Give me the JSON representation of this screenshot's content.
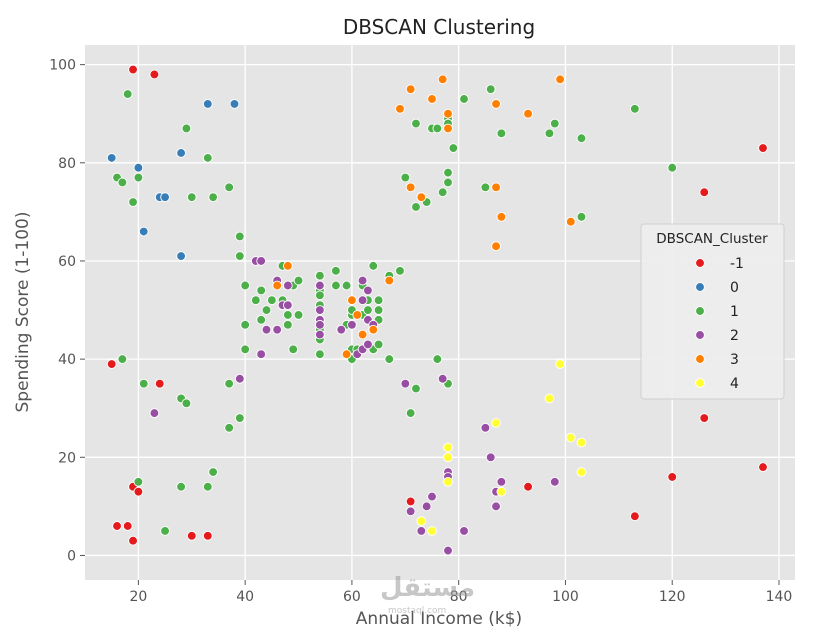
{
  "chart_data": {
    "type": "scatter",
    "title": "DBSCAN Clustering",
    "xlabel": "Annual Income (k$)",
    "ylabel": "Spending Score (1-100)",
    "xlim": [
      10,
      143
    ],
    "ylim": [
      -5,
      104
    ],
    "xticks": [
      20,
      40,
      60,
      80,
      100,
      120,
      140
    ],
    "yticks": [
      0,
      20,
      40,
      60,
      80,
      100
    ],
    "grid": true,
    "legend": {
      "title": "DBSCAN_Cluster",
      "placement": "center-right"
    },
    "series": [
      {
        "name": "-1",
        "color": "#e41a1c",
        "points": [
          [
            19,
            99
          ],
          [
            23,
            98
          ],
          [
            15,
            39
          ],
          [
            24,
            35
          ],
          [
            19,
            14
          ],
          [
            20,
            13
          ],
          [
            16,
            6
          ],
          [
            18,
            6
          ],
          [
            19,
            3
          ],
          [
            30,
            4
          ],
          [
            33,
            4
          ],
          [
            71,
            11
          ],
          [
            93,
            14
          ],
          [
            113,
            8
          ],
          [
            120,
            16
          ],
          [
            126,
            28
          ],
          [
            126,
            74
          ],
          [
            137,
            83
          ],
          [
            137,
            18
          ]
        ]
      },
      {
        "name": "0",
        "color": "#377eb8",
        "points": [
          [
            33,
            92
          ],
          [
            38,
            92
          ],
          [
            15,
            81
          ],
          [
            20,
            79
          ],
          [
            28,
            82
          ],
          [
            24,
            73
          ],
          [
            25,
            73
          ],
          [
            21,
            66
          ],
          [
            28,
            61
          ]
        ]
      },
      {
        "name": "1",
        "color": "#4daf4a",
        "points": [
          [
            18,
            94
          ],
          [
            16,
            77
          ],
          [
            17,
            76
          ],
          [
            20,
            77
          ],
          [
            19,
            72
          ],
          [
            29,
            87
          ],
          [
            30,
            73
          ],
          [
            33,
            81
          ],
          [
            34,
            73
          ],
          [
            37,
            75
          ],
          [
            39,
            65
          ],
          [
            39,
            61
          ],
          [
            40,
            55
          ],
          [
            40,
            47
          ],
          [
            40,
            42
          ],
          [
            17,
            40
          ],
          [
            21,
            35
          ],
          [
            28,
            32
          ],
          [
            29,
            31
          ],
          [
            37,
            35
          ],
          [
            39,
            28
          ],
          [
            37,
            26
          ],
          [
            20,
            15
          ],
          [
            25,
            5
          ],
          [
            28,
            14
          ],
          [
            33,
            14
          ],
          [
            34,
            17
          ],
          [
            42,
            52
          ],
          [
            43,
            54
          ],
          [
            43,
            48
          ],
          [
            44,
            50
          ],
          [
            45,
            52
          ],
          [
            46,
            46
          ],
          [
            47,
            52
          ],
          [
            47,
            59
          ],
          [
            48,
            49
          ],
          [
            48,
            47
          ],
          [
            49,
            55
          ],
          [
            49,
            42
          ],
          [
            50,
            49
          ],
          [
            50,
            56
          ],
          [
            54,
            57
          ],
          [
            54,
            54
          ],
          [
            54,
            53
          ],
          [
            54,
            51
          ],
          [
            54,
            48
          ],
          [
            54,
            46
          ],
          [
            54,
            44
          ],
          [
            54,
            41
          ],
          [
            57,
            58
          ],
          [
            57,
            55
          ],
          [
            58,
            46
          ],
          [
            59,
            55
          ],
          [
            59,
            47
          ],
          [
            60,
            52
          ],
          [
            60,
            42
          ],
          [
            60,
            40
          ],
          [
            60,
            49
          ],
          [
            60,
            50
          ],
          [
            61,
            42
          ],
          [
            62,
            49
          ],
          [
            62,
            55
          ],
          [
            63,
            52
          ],
          [
            63,
            50
          ],
          [
            64,
            42
          ],
          [
            64,
            46
          ],
          [
            64,
            59
          ],
          [
            65,
            48
          ],
          [
            65,
            50
          ],
          [
            65,
            52
          ],
          [
            65,
            43
          ],
          [
            67,
            57
          ],
          [
            67,
            40
          ],
          [
            69,
            58
          ],
          [
            70,
            77
          ],
          [
            71,
            75
          ],
          [
            72,
            88
          ],
          [
            72,
            71
          ],
          [
            73,
            73
          ],
          [
            74,
            72
          ],
          [
            75,
            87
          ],
          [
            76,
            87
          ],
          [
            77,
            74
          ],
          [
            78,
            76
          ],
          [
            78,
            78
          ],
          [
            78,
            89
          ],
          [
            78,
            88
          ],
          [
            79,
            83
          ],
          [
            81,
            93
          ],
          [
            85,
            75
          ],
          [
            86,
            95
          ],
          [
            87,
            63
          ],
          [
            88,
            86
          ],
          [
            97,
            86
          ],
          [
            98,
            88
          ],
          [
            103,
            85
          ],
          [
            103,
            69
          ],
          [
            113,
            91
          ],
          [
            120,
            79
          ],
          [
            71,
            29
          ],
          [
            72,
            34
          ],
          [
            76,
            40
          ],
          [
            78,
            35
          ]
        ]
      },
      {
        "name": "2",
        "color": "#984ea3",
        "points": [
          [
            23,
            29
          ],
          [
            39,
            36
          ],
          [
            42,
            60
          ],
          [
            43,
            60
          ],
          [
            43,
            41
          ],
          [
            44,
            46
          ],
          [
            46,
            46
          ],
          [
            46,
            56
          ],
          [
            47,
            51
          ],
          [
            48,
            51
          ],
          [
            48,
            55
          ],
          [
            54,
            55
          ],
          [
            54,
            50
          ],
          [
            54,
            48
          ],
          [
            54,
            47
          ],
          [
            54,
            45
          ],
          [
            58,
            46
          ],
          [
            60,
            47
          ],
          [
            61,
            41
          ],
          [
            62,
            42
          ],
          [
            62,
            56
          ],
          [
            62,
            52
          ],
          [
            63,
            54
          ],
          [
            63,
            48
          ],
          [
            63,
            43
          ],
          [
            64,
            47
          ],
          [
            70,
            35
          ],
          [
            71,
            9
          ],
          [
            73,
            5
          ],
          [
            74,
            10
          ],
          [
            75,
            12
          ],
          [
            77,
            36
          ],
          [
            78,
            17
          ],
          [
            78,
            1
          ],
          [
            78,
            16
          ],
          [
            81,
            5
          ],
          [
            85,
            26
          ],
          [
            86,
            20
          ],
          [
            87,
            13
          ],
          [
            87,
            10
          ],
          [
            88,
            15
          ],
          [
            98,
            15
          ]
        ]
      },
      {
        "name": "3",
        "color": "#ff7f00",
        "points": [
          [
            69,
            91
          ],
          [
            71,
            95
          ],
          [
            71,
            75
          ],
          [
            73,
            73
          ],
          [
            75,
            93
          ],
          [
            77,
            97
          ],
          [
            78,
            90
          ],
          [
            78,
            87
          ],
          [
            87,
            92
          ],
          [
            87,
            75
          ],
          [
            88,
            69
          ],
          [
            87,
            63
          ],
          [
            93,
            90
          ],
          [
            99,
            97
          ],
          [
            101,
            68
          ],
          [
            46,
            55
          ],
          [
            48,
            59
          ],
          [
            59,
            41
          ],
          [
            60,
            52
          ],
          [
            61,
            49
          ],
          [
            62,
            45
          ],
          [
            64,
            46
          ],
          [
            67,
            56
          ]
        ]
      },
      {
        "name": "4",
        "color": "#ffff33",
        "points": [
          [
            73,
            7
          ],
          [
            75,
            5
          ],
          [
            78,
            22
          ],
          [
            78,
            20
          ],
          [
            78,
            15
          ],
          [
            87,
            27
          ],
          [
            88,
            13
          ],
          [
            97,
            32
          ],
          [
            99,
            39
          ],
          [
            101,
            24
          ],
          [
            103,
            23
          ],
          [
            103,
            17
          ]
        ]
      }
    ]
  }
}
